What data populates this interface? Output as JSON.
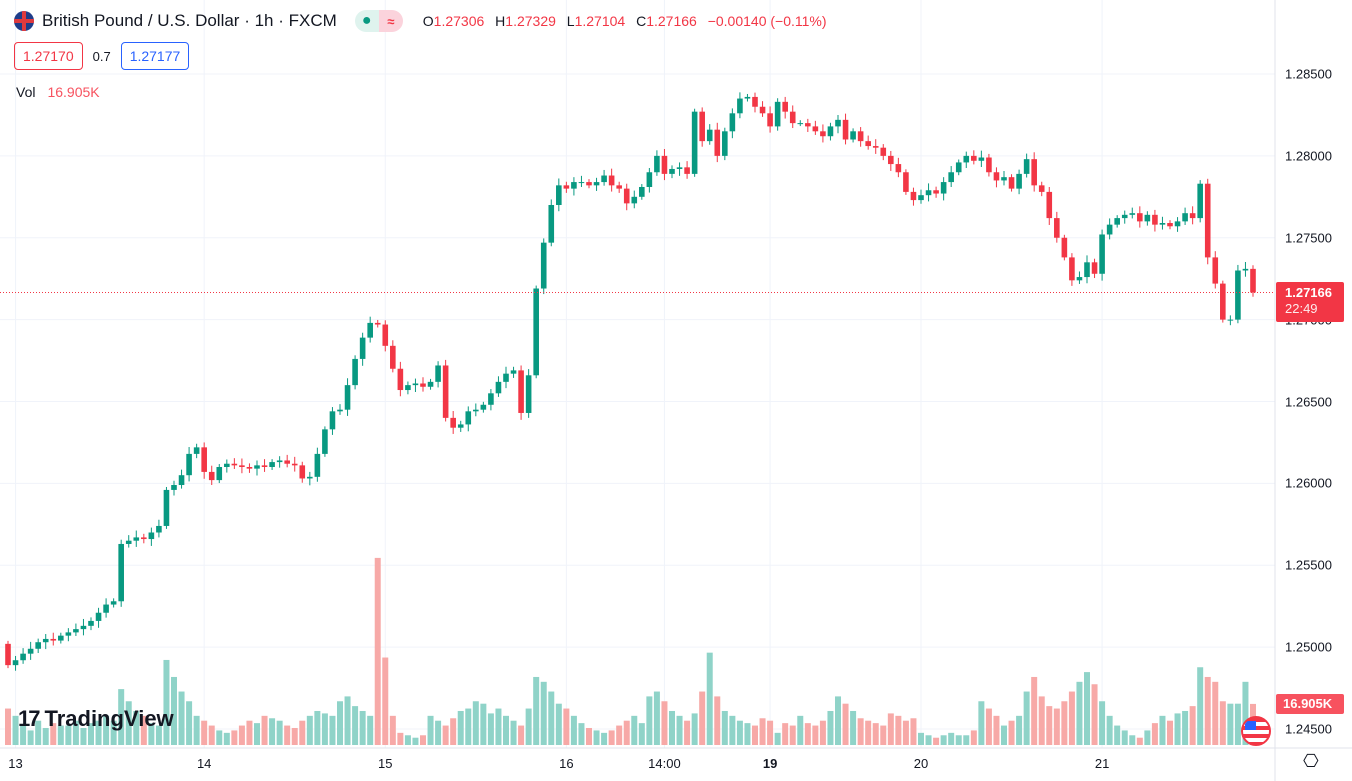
{
  "header": {
    "title": "British Pound / U.S. Dollar · 1h · FXCM",
    "status_open_icon": "●",
    "status_icon": "≈",
    "o_label": "O",
    "o": "1.27306",
    "h_label": "H",
    "h": "1.27329",
    "l_label": "L",
    "l": "1.27104",
    "c_label": "C",
    "c": "1.27166",
    "change": "−0.00140 (−0.11%)"
  },
  "trade": {
    "sell": "1.27170",
    "spread": "0.7",
    "buy": "1.27177"
  },
  "volume": {
    "label": "Vol",
    "value": "16.905K"
  },
  "last_price": {
    "price": "1.27166",
    "countdown": "22:49"
  },
  "brand": {
    "logo_mark": "17",
    "name": "TradingView"
  },
  "colors": {
    "up": "#089981",
    "down": "#f23645",
    "vol_up": "#8fd3c8",
    "vol_down": "#f7a9a7"
  },
  "chart_data": {
    "type": "candlestick",
    "symbol": "GBPUSD",
    "interval": "1h",
    "ylim": [
      1.245,
      1.285
    ],
    "y_ticks": [
      "1.28500",
      "1.28000",
      "1.27500",
      "1.27000",
      "1.26500",
      "1.26000",
      "1.25500",
      "1.25000",
      "1.24500"
    ],
    "x_ticks": [
      {
        "label": "13",
        "index": 1,
        "bold": false
      },
      {
        "label": "14",
        "index": 26,
        "bold": false
      },
      {
        "label": "15",
        "index": 50,
        "bold": false
      },
      {
        "label": "16",
        "index": 74,
        "bold": false
      },
      {
        "label": "14:00",
        "index": 87,
        "bold": false
      },
      {
        "label": "19",
        "index": 101,
        "bold": true
      },
      {
        "label": "20",
        "index": 121,
        "bold": false
      },
      {
        "label": "21",
        "index": 145,
        "bold": false
      }
    ],
    "first_open": 1.2502,
    "close": [
      1.2489,
      1.2492,
      1.2496,
      1.2499,
      1.2503,
      1.2505,
      1.2504,
      1.2507,
      1.2509,
      1.2511,
      1.2513,
      1.2516,
      1.2521,
      1.2526,
      1.2528,
      1.2563,
      1.2565,
      1.2567,
      1.2566,
      1.257,
      1.2574,
      1.2596,
      1.2599,
      1.2605,
      1.2618,
      1.2622,
      1.2607,
      1.2602,
      1.261,
      1.2612,
      1.2611,
      1.261,
      1.2609,
      1.2611,
      1.261,
      1.2613,
      1.2614,
      1.2612,
      1.2611,
      1.2603,
      1.2604,
      1.2618,
      1.2633,
      1.2644,
      1.2645,
      1.266,
      1.2676,
      1.2689,
      1.2698,
      1.2697,
      1.2684,
      1.267,
      1.2657,
      1.266,
      1.2661,
      1.2659,
      1.2662,
      1.2672,
      1.264,
      1.2634,
      1.2636,
      1.2644,
      1.2645,
      1.2648,
      1.2655,
      1.2662,
      1.2667,
      1.2669,
      1.2643,
      1.2666,
      1.2719,
      1.2747,
      1.277,
      1.2782,
      1.278,
      1.2784,
      1.2784,
      1.2782,
      1.2784,
      1.2788,
      1.2782,
      1.278,
      1.2771,
      1.2775,
      1.2781,
      1.279,
      1.28,
      1.2789,
      1.2792,
      1.2793,
      1.2789,
      1.2827,
      1.2809,
      1.2816,
      1.28,
      1.2815,
      1.2826,
      1.2835,
      1.2836,
      1.283,
      1.2826,
      1.2818,
      1.2833,
      1.2827,
      1.282,
      1.282,
      1.2818,
      1.2815,
      1.2812,
      1.2818,
      1.2822,
      1.281,
      1.2815,
      1.2809,
      1.2806,
      1.2805,
      1.28,
      1.2795,
      1.279,
      1.2778,
      1.2773,
      1.2776,
      1.2779,
      1.2777,
      1.2784,
      1.279,
      1.2796,
      1.28,
      1.2797,
      1.2799,
      1.279,
      1.2785,
      1.2787,
      1.278,
      1.2789,
      1.2798,
      1.2782,
      1.2778,
      1.2762,
      1.275,
      1.2738,
      1.2724,
      1.2726,
      1.2735,
      1.2728,
      1.2752,
      1.2758,
      1.2762,
      1.2764,
      1.2765,
      1.276,
      1.2764,
      1.2758,
      1.2759,
      1.2757,
      1.276,
      1.2765,
      1.2762,
      1.2783,
      1.2738,
      1.2722,
      1.27,
      1.27,
      1.273,
      1.2731,
      1.27166
    ],
    "volume_k": [
      15,
      12,
      8,
      6,
      10,
      7,
      9,
      8,
      8,
      10,
      7,
      9,
      10,
      12,
      10,
      23,
      18,
      14,
      12,
      9,
      8,
      35,
      28,
      22,
      18,
      12,
      10,
      8,
      6,
      5,
      6,
      8,
      10,
      9,
      12,
      11,
      10,
      8,
      7,
      10,
      12,
      14,
      13,
      12,
      18,
      20,
      16,
      14,
      12,
      77,
      36,
      12,
      5,
      4,
      3,
      4,
      12,
      10,
      8,
      11,
      14,
      15,
      18,
      17,
      13,
      15,
      12,
      10,
      8,
      15,
      28,
      26,
      22,
      17,
      15,
      12,
      9,
      7,
      6,
      5,
      6,
      8,
      10,
      12,
      9,
      20,
      22,
      18,
      14,
      12,
      10,
      13,
      22,
      38,
      20,
      14,
      12,
      10,
      9,
      8,
      11,
      10,
      5,
      9,
      8,
      12,
      9,
      8,
      10,
      14,
      20,
      17,
      14,
      11,
      10,
      9,
      8,
      13,
      12,
      10,
      11,
      5,
      4,
      3,
      4,
      5,
      4,
      4,
      6,
      18,
      15,
      12,
      8,
      10,
      12,
      22,
      28,
      20,
      16,
      15,
      18,
      22,
      26,
      30,
      25,
      18,
      12,
      8,
      6,
      4,
      3,
      6,
      9,
      12,
      10,
      13,
      14,
      16,
      32,
      28,
      26,
      18,
      17,
      17,
      26,
      16.905
    ]
  }
}
